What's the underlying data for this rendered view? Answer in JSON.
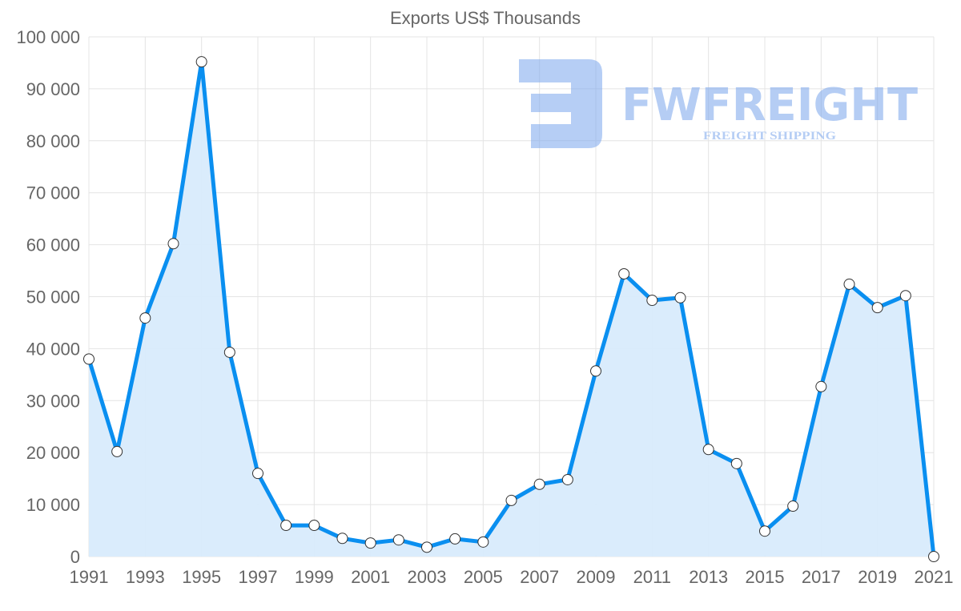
{
  "chart_data": {
    "type": "area",
    "title": "Exports US$ Thousands",
    "xlabel": "",
    "ylabel": "",
    "x": [
      1991,
      1992,
      1993,
      1994,
      1995,
      1996,
      1997,
      1998,
      1999,
      2000,
      2001,
      2002,
      2003,
      2004,
      2005,
      2006,
      2007,
      2008,
      2009,
      2010,
      2011,
      2012,
      2013,
      2014,
      2015,
      2016,
      2017,
      2018,
      2019,
      2020,
      2021
    ],
    "series": [
      {
        "name": "Exports US$ Thousands",
        "values": [
          38000,
          20200,
          45900,
          60200,
          95200,
          39300,
          16000,
          6000,
          6000,
          3500,
          2600,
          3200,
          1800,
          3400,
          2800,
          10800,
          13900,
          14800,
          35700,
          54400,
          49300,
          49800,
          20600,
          17900,
          4900,
          9700,
          32700,
          52400,
          47900,
          50200,
          0
        ]
      }
    ],
    "xticks": [
      "1991",
      "1993",
      "1995",
      "1997",
      "1999",
      "2001",
      "2003",
      "2005",
      "2007",
      "2009",
      "2011",
      "2013",
      "2015",
      "2017",
      "2019",
      "2021"
    ],
    "yticks": [
      "0",
      "10 000",
      "20 000",
      "30 000",
      "40 000",
      "50 000",
      "60 000",
      "70 000",
      "80 000",
      "90 000",
      "100 000"
    ],
    "ylim": [
      0,
      100000
    ],
    "xlim": [
      1991,
      2021
    ],
    "grid": true,
    "legend": "none",
    "colors": {
      "line": "#0a8ff0",
      "fill": "#d8ebfc",
      "watermark": "#7aa6ec"
    }
  },
  "watermark": {
    "brand": "FWFREIGHT",
    "tagline": "FREIGHT SHIPPING"
  }
}
